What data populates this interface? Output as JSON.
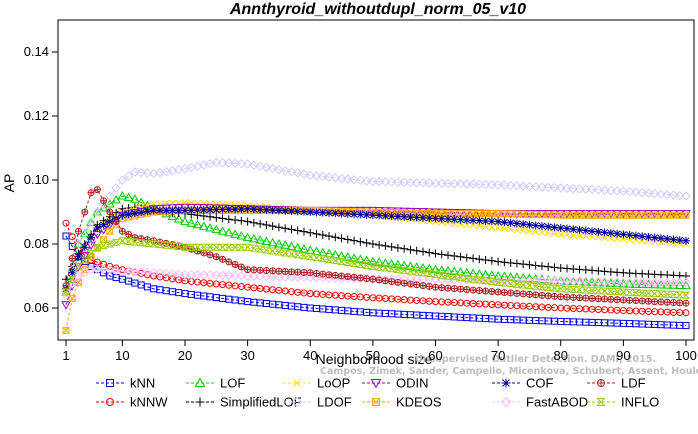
{
  "chart_data": {
    "type": "line",
    "title": "Annthyroid_withoutdupl_norm_05_v10",
    "xlabel": "Neighborhood size",
    "ylabel": "AP",
    "xlim": [
      1,
      100
    ],
    "ylim": [
      0.05,
      0.15
    ],
    "xticks": [
      "1",
      "10",
      "20",
      "30",
      "40",
      "50",
      "60",
      "70",
      "80",
      "90",
      "100"
    ],
    "yticks": [
      "0.06",
      "0.08",
      "0.10",
      "0.12",
      "0.14"
    ],
    "grid": false,
    "legend_position": "bottom",
    "series": [
      {
        "name": "kNN",
        "color": "#0000ff",
        "marker": "square",
        "points": [
          [
            1,
            0.0825
          ],
          [
            3,
            0.076
          ],
          [
            5,
            0.073
          ],
          [
            8,
            0.07
          ],
          [
            10,
            0.069
          ],
          [
            15,
            0.066
          ],
          [
            20,
            0.0645
          ],
          [
            30,
            0.062
          ],
          [
            40,
            0.06
          ],
          [
            50,
            0.0585
          ],
          [
            60,
            0.0575
          ],
          [
            70,
            0.0565
          ],
          [
            80,
            0.0558
          ],
          [
            90,
            0.0552
          ],
          [
            100,
            0.0545
          ]
        ]
      },
      {
        "name": "kNNW",
        "color": "#ff0000",
        "marker": "circle",
        "points": [
          [
            1,
            0.0865
          ],
          [
            3,
            0.078
          ],
          [
            5,
            0.075
          ],
          [
            8,
            0.073
          ],
          [
            10,
            0.072
          ],
          [
            15,
            0.07
          ],
          [
            20,
            0.0685
          ],
          [
            30,
            0.0665
          ],
          [
            40,
            0.0645
          ],
          [
            50,
            0.0632
          ],
          [
            60,
            0.062
          ],
          [
            70,
            0.061
          ],
          [
            80,
            0.06
          ],
          [
            90,
            0.0592
          ],
          [
            100,
            0.0585
          ]
        ]
      },
      {
        "name": "LOF",
        "color": "#00cc00",
        "marker": "triangle-up",
        "points": [
          [
            1,
            0.065
          ],
          [
            3,
            0.08
          ],
          [
            6,
            0.09
          ],
          [
            10,
            0.095
          ],
          [
            12,
            0.094
          ],
          [
            15,
            0.091
          ],
          [
            20,
            0.087
          ],
          [
            30,
            0.082
          ],
          [
            40,
            0.078
          ],
          [
            50,
            0.0745
          ],
          [
            60,
            0.072
          ],
          [
            70,
            0.07
          ],
          [
            80,
            0.0685
          ],
          [
            90,
            0.0675
          ],
          [
            100,
            0.067
          ]
        ]
      },
      {
        "name": "SimplifiedLOF",
        "color": "#000000",
        "marker": "plus",
        "points": [
          [
            1,
            0.069
          ],
          [
            3,
            0.077
          ],
          [
            6,
            0.086
          ],
          [
            10,
            0.091
          ],
          [
            12,
            0.0915
          ],
          [
            15,
            0.0905
          ],
          [
            20,
            0.0895
          ],
          [
            30,
            0.087
          ],
          [
            40,
            0.0835
          ],
          [
            50,
            0.08
          ],
          [
            60,
            0.077
          ],
          [
            70,
            0.0745
          ],
          [
            80,
            0.0725
          ],
          [
            90,
            0.071
          ],
          [
            100,
            0.07
          ]
        ]
      },
      {
        "name": "LoOP",
        "color": "#ffdd00",
        "marker": "cross",
        "points": [
          [
            1,
            0.064
          ],
          [
            3,
            0.076
          ],
          [
            6,
            0.085
          ],
          [
            10,
            0.09
          ],
          [
            15,
            0.0925
          ],
          [
            20,
            0.093
          ],
          [
            30,
            0.092
          ],
          [
            40,
            0.0905
          ],
          [
            50,
            0.089
          ],
          [
            60,
            0.087
          ],
          [
            70,
            0.085
          ],
          [
            80,
            0.083
          ],
          [
            90,
            0.0815
          ],
          [
            100,
            0.08
          ]
        ]
      },
      {
        "name": "LDOF",
        "color": "#ccccff",
        "marker": "diamond",
        "points": [
          [
            1,
            0.064
          ],
          [
            3,
            0.08
          ],
          [
            6,
            0.09
          ],
          [
            10,
            0.1
          ],
          [
            12,
            0.1025
          ],
          [
            15,
            0.102
          ],
          [
            20,
            0.1035
          ],
          [
            25,
            0.1055
          ],
          [
            30,
            0.105
          ],
          [
            40,
            0.1015
          ],
          [
            50,
            0.0995
          ],
          [
            60,
            0.099
          ],
          [
            70,
            0.0985
          ],
          [
            80,
            0.0975
          ],
          [
            90,
            0.0965
          ],
          [
            100,
            0.095
          ]
        ]
      },
      {
        "name": "ODIN",
        "color": "#9900cc",
        "marker": "triangle-down",
        "points": [
          [
            1,
            0.061
          ],
          [
            3,
            0.073
          ],
          [
            6,
            0.083
          ],
          [
            10,
            0.089
          ],
          [
            15,
            0.091
          ],
          [
            20,
            0.0915
          ],
          [
            30,
            0.091
          ],
          [
            40,
            0.0905
          ],
          [
            50,
            0.0905
          ],
          [
            60,
            0.09
          ],
          [
            70,
            0.0895
          ],
          [
            80,
            0.0895
          ],
          [
            90,
            0.0895
          ],
          [
            100,
            0.0895
          ]
        ]
      },
      {
        "name": "KDEOS",
        "color": "#ffaa00",
        "marker": "square-x",
        "points": [
          [
            1,
            0.053
          ],
          [
            2,
            0.063
          ],
          [
            3,
            0.068
          ],
          [
            5,
            0.076
          ],
          [
            8,
            0.084
          ],
          [
            10,
            0.088
          ],
          [
            15,
            0.09
          ],
          [
            20,
            0.0905
          ],
          [
            30,
            0.0905
          ],
          [
            40,
            0.0905
          ],
          [
            50,
            0.09
          ],
          [
            60,
            0.0895
          ],
          [
            70,
            0.0895
          ],
          [
            80,
            0.089
          ],
          [
            90,
            0.089
          ],
          [
            100,
            0.089
          ]
        ]
      },
      {
        "name": "COF",
        "color": "#000099",
        "marker": "asterisk",
        "points": [
          [
            1,
            0.066
          ],
          [
            3,
            0.076
          ],
          [
            6,
            0.085
          ],
          [
            10,
            0.089
          ],
          [
            15,
            0.0905
          ],
          [
            20,
            0.0905
          ],
          [
            30,
            0.091
          ],
          [
            40,
            0.09
          ],
          [
            50,
            0.089
          ],
          [
            60,
            0.088
          ],
          [
            70,
            0.087
          ],
          [
            80,
            0.085
          ],
          [
            90,
            0.083
          ],
          [
            100,
            0.081
          ]
        ]
      },
      {
        "name": "FastABOD",
        "color": "#ffbbff",
        "marker": "diamond",
        "points": [
          [
            1,
            0.065
          ],
          [
            3,
            0.07
          ],
          [
            5,
            0.072
          ],
          [
            8,
            0.072
          ],
          [
            10,
            0.0715
          ],
          [
            15,
            0.071
          ],
          [
            20,
            0.0705
          ],
          [
            30,
            0.07
          ],
          [
            40,
            0.0695
          ],
          [
            50,
            0.069
          ],
          [
            60,
            0.069
          ],
          [
            70,
            0.0685
          ],
          [
            80,
            0.0685
          ],
          [
            90,
            0.068
          ],
          [
            100,
            0.068
          ]
        ]
      },
      {
        "name": "LDF",
        "color": "#aa2222",
        "marker": "circle-plus",
        "points": [
          [
            1,
            0.067
          ],
          [
            3,
            0.084
          ],
          [
            5,
            0.096
          ],
          [
            6,
            0.097
          ],
          [
            8,
            0.09
          ],
          [
            10,
            0.084
          ],
          [
            12,
            0.082
          ],
          [
            15,
            0.081
          ],
          [
            20,
            0.079
          ],
          [
            25,
            0.076
          ],
          [
            30,
            0.072
          ],
          [
            40,
            0.071
          ],
          [
            50,
            0.069
          ],
          [
            60,
            0.0665
          ],
          [
            70,
            0.065
          ],
          [
            80,
            0.0635
          ],
          [
            90,
            0.0625
          ],
          [
            100,
            0.0615
          ]
        ]
      },
      {
        "name": "INFLO",
        "color": "#99cc00",
        "marker": "hourglass",
        "points": [
          [
            1,
            0.065
          ],
          [
            3,
            0.073
          ],
          [
            6,
            0.079
          ],
          [
            10,
            0.081
          ],
          [
            15,
            0.08
          ],
          [
            20,
            0.079
          ],
          [
            30,
            0.079
          ],
          [
            40,
            0.076
          ],
          [
            50,
            0.073
          ],
          [
            60,
            0.0705
          ],
          [
            70,
            0.068
          ],
          [
            80,
            0.066
          ],
          [
            90,
            0.065
          ],
          [
            100,
            0.064
          ]
        ]
      }
    ],
    "watermark": [
      "Unsupervised Outlier Detection. DAMI, 2015.",
      "Campos, Zimek, Sander, Campello, Micenkova, Schubert, Assent, Houle"
    ]
  }
}
